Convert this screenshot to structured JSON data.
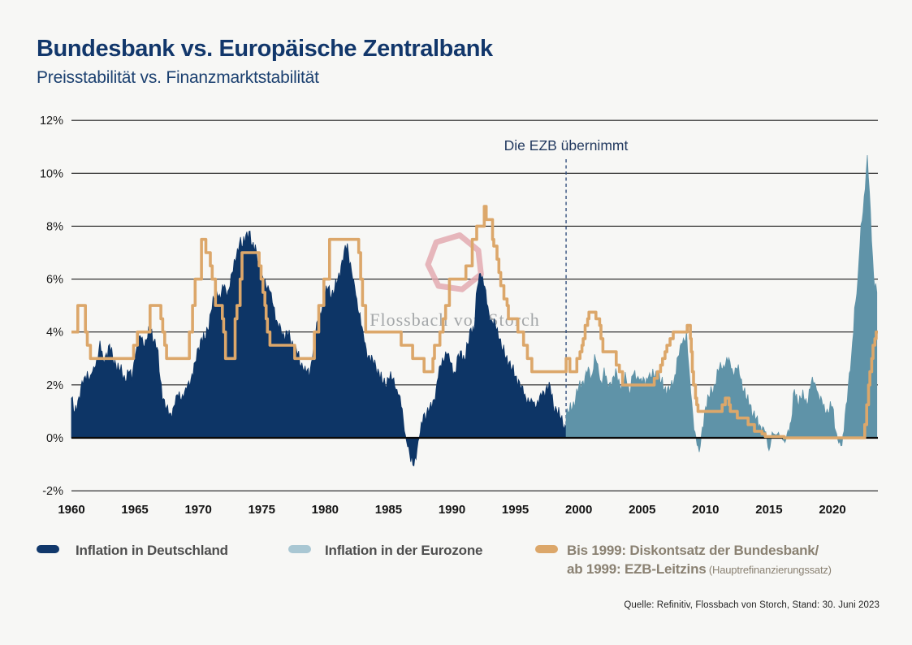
{
  "header": {
    "title": "Bundesbank vs. Europäische Zentralbank",
    "subtitle": "Preisstabilität vs. Finanzmarktstabilität"
  },
  "annotation": {
    "label": "Die EZB übernimmt",
    "x": 1999
  },
  "watermark": {
    "text": "Flossbach von Storch",
    "ring_color": "#e2a7af",
    "text_color": "#8f9396"
  },
  "source": "Quelle: Refinitiv, Flossbach von Storch, Stand: 30. Juni 2023",
  "legend": {
    "items": [
      {
        "label": "Inflation in Deutschland",
        "swatch_color": "#11386b"
      },
      {
        "label": "Inflation in der Eurozone",
        "swatch_color": "#a9c7d3"
      },
      {
        "label_line1": "Bis 1999: Diskontsatz der Bundesbank/",
        "label_line2": "ab 1999: EZB-Leitzins",
        "note": " (Hauptrefinanzierungssatz)",
        "swatch_color": "#dca76a"
      }
    ]
  },
  "chart_data": {
    "type": "area",
    "title": "Bundesbank vs. Europäische Zentralbank",
    "subtitle": "Preisstabilität vs. Finanzmarktstabilität",
    "xlim": [
      1960,
      2023.6
    ],
    "ylim": [
      -2,
      12
    ],
    "grid": "horizontal",
    "legend_position": "bottom",
    "y_ticks": [
      {
        "v": 12,
        "label": "12%"
      },
      {
        "v": 10,
        "label": "10%"
      },
      {
        "v": 8,
        "label": "8%"
      },
      {
        "v": 6,
        "label": "6%"
      },
      {
        "v": 4,
        "label": "4%"
      },
      {
        "v": 2,
        "label": "2%"
      },
      {
        "v": 0,
        "label": "0%"
      },
      {
        "v": -2,
        "label": "-2%"
      }
    ],
    "x_ticks": [
      1960,
      1965,
      1970,
      1975,
      1980,
      1985,
      1990,
      1995,
      2000,
      2005,
      2010,
      2015,
      2020
    ],
    "series": [
      {
        "name": "Inflation in Deutschland",
        "type": "area",
        "color": "#0d3566",
        "x_start": 1960,
        "x_step": 0.25,
        "values": [
          1.5,
          0.9,
          1.4,
          1.9,
          2.2,
          2.5,
          2.3,
          2.6,
          3.0,
          3.6,
          2.9,
          3.2,
          3.5,
          3.0,
          2.8,
          2.6,
          2.4,
          2.2,
          2.5,
          2.2,
          3.1,
          3.5,
          3.8,
          3.5,
          3.8,
          4.1,
          3.7,
          3.4,
          2.2,
          1.5,
          1.1,
          0.9,
          1.1,
          1.5,
          1.7,
          1.6,
          1.8,
          2.1,
          2.4,
          2.8,
          3.4,
          3.8,
          3.7,
          4.1,
          4.8,
          5.2,
          5.5,
          5.3,
          5.7,
          5.4,
          5.8,
          6.3,
          6.9,
          7.4,
          7.2,
          7.7,
          7.8,
          7.2,
          7.3,
          6.7,
          6.1,
          6.0,
          5.7,
          5.4,
          4.9,
          4.3,
          4.1,
          3.9,
          4.0,
          3.7,
          3.5,
          3.3,
          2.8,
          2.7,
          2.5,
          2.3,
          3.1,
          3.9,
          4.5,
          4.9,
          5.3,
          5.7,
          5.4,
          5.6,
          6.0,
          6.5,
          7.0,
          7.3,
          6.6,
          5.9,
          5.2,
          4.7,
          3.9,
          3.3,
          3.1,
          2.9,
          2.7,
          2.5,
          2.1,
          2.0,
          2.3,
          2.2,
          2.0,
          1.7,
          1.2,
          0.3,
          -0.3,
          -0.9,
          -1.0,
          -0.4,
          0.2,
          0.9,
          0.9,
          1.1,
          1.4,
          1.8,
          2.6,
          3.0,
          3.2,
          3.1,
          2.8,
          2.4,
          3.1,
          3.3,
          2.9,
          3.5,
          4.2,
          4.0,
          5.7,
          6.3,
          5.8,
          5.1,
          4.5,
          4.3,
          4.1,
          3.8,
          3.3,
          3.0,
          2.9,
          2.6,
          2.3,
          2.2,
          1.9,
          1.6,
          1.5,
          1.4,
          1.3,
          1.4,
          1.6,
          1.7,
          2.0,
          1.9,
          1.2,
          1.1,
          0.8,
          0.5,
          0.4
        ]
      },
      {
        "name": "Inflation in der Eurozone",
        "type": "area",
        "color": "#5f93a8",
        "x_start": 1999,
        "x_step": 0.25,
        "values": [
          0.8,
          1.0,
          1.2,
          1.5,
          1.9,
          2.1,
          2.3,
          2.6,
          2.3,
          3.1,
          2.7,
          2.1,
          2.6,
          2.0,
          2.1,
          2.3,
          2.4,
          2.0,
          2.1,
          2.2,
          1.7,
          2.4,
          2.2,
          2.3,
          2.1,
          2.0,
          2.4,
          2.3,
          2.3,
          2.5,
          2.1,
          1.8,
          1.9,
          1.9,
          2.1,
          3.0,
          3.4,
          3.7,
          4.0,
          2.2,
          0.8,
          0.0,
          -0.6,
          0.4,
          1.2,
          1.5,
          1.8,
          2.0,
          2.5,
          2.7,
          2.7,
          2.9,
          2.7,
          2.4,
          2.6,
          2.3,
          1.8,
          1.4,
          1.3,
          0.9,
          0.7,
          0.5,
          0.4,
          0.2,
          -0.5,
          0.2,
          0.1,
          0.2,
          0.0,
          -0.2,
          0.3,
          0.6,
          1.8,
          1.4,
          1.5,
          1.5,
          1.3,
          1.9,
          2.1,
          1.9,
          1.4,
          1.2,
          1.0,
          1.0,
          1.2,
          0.3,
          -0.2,
          -0.3,
          0.9,
          1.9,
          3.0,
          4.9,
          5.9,
          8.0,
          9.1,
          10.6,
          8.5,
          6.1,
          5.5
        ]
      },
      {
        "name": "Bis 1999: Diskontsatz der Bundesbank / ab 1999: EZB-Leitzins (Hauptrefinanzierungssatz)",
        "type": "step",
        "color": "#dca76a",
        "points": [
          [
            1960,
            4
          ],
          [
            1960.5,
            5
          ],
          [
            1961.1,
            4
          ],
          [
            1961.25,
            3.5
          ],
          [
            1961.5,
            3
          ],
          [
            1964.9,
            3.5
          ],
          [
            1965.2,
            4
          ],
          [
            1966.2,
            5
          ],
          [
            1967.05,
            4.5
          ],
          [
            1967.2,
            4
          ],
          [
            1967.35,
            3.5
          ],
          [
            1967.5,
            3
          ],
          [
            1969.3,
            4
          ],
          [
            1969.55,
            5
          ],
          [
            1969.75,
            6
          ],
          [
            1970.25,
            7.5
          ],
          [
            1970.6,
            7
          ],
          [
            1970.95,
            6.5
          ],
          [
            1971.1,
            6
          ],
          [
            1971.35,
            5
          ],
          [
            1971.9,
            4.5
          ],
          [
            1972.0,
            4
          ],
          [
            1972.15,
            3
          ],
          [
            1972.9,
            4.5
          ],
          [
            1973.05,
            5
          ],
          [
            1973.3,
            6
          ],
          [
            1973.45,
            7
          ],
          [
            1974.8,
            6.5
          ],
          [
            1974.95,
            6
          ],
          [
            1975.1,
            5.5
          ],
          [
            1975.25,
            5
          ],
          [
            1975.35,
            4.5
          ],
          [
            1975.45,
            4
          ],
          [
            1975.65,
            3.5
          ],
          [
            1977.6,
            3
          ],
          [
            1979.15,
            4
          ],
          [
            1979.5,
            5
          ],
          [
            1979.9,
            6
          ],
          [
            1980.35,
            7.5
          ],
          [
            1982.65,
            7
          ],
          [
            1982.8,
            6
          ],
          [
            1982.95,
            5
          ],
          [
            1983.2,
            4
          ],
          [
            1986.0,
            3.5
          ],
          [
            1986.9,
            3
          ],
          [
            1987.8,
            2.5
          ],
          [
            1988.5,
            3
          ],
          [
            1988.62,
            3.5
          ],
          [
            1989.05,
            4
          ],
          [
            1989.3,
            4.5
          ],
          [
            1989.5,
            5
          ],
          [
            1989.8,
            6
          ],
          [
            1991.1,
            6.5
          ],
          [
            1991.6,
            7.5
          ],
          [
            1991.95,
            8
          ],
          [
            1992.55,
            8.75
          ],
          [
            1992.7,
            8.25
          ],
          [
            1993.2,
            7.5
          ],
          [
            1993.3,
            7.25
          ],
          [
            1993.55,
            6.75
          ],
          [
            1993.7,
            6.25
          ],
          [
            1993.85,
            5.75
          ],
          [
            1994.1,
            5.25
          ],
          [
            1994.35,
            5
          ],
          [
            1994.45,
            4.5
          ],
          [
            1995.2,
            4
          ],
          [
            1995.65,
            3.5
          ],
          [
            1995.95,
            3
          ],
          [
            1996.3,
            2.5
          ],
          [
            1999.0,
            3
          ],
          [
            1999.3,
            2.5
          ],
          [
            1999.85,
            3
          ],
          [
            2000.1,
            3.25
          ],
          [
            2000.25,
            3.5
          ],
          [
            2000.35,
            3.75
          ],
          [
            2000.5,
            4.25
          ],
          [
            2000.7,
            4.5
          ],
          [
            2000.8,
            4.75
          ],
          [
            2001.35,
            4.5
          ],
          [
            2001.65,
            4.25
          ],
          [
            2001.75,
            3.75
          ],
          [
            2001.9,
            3.25
          ],
          [
            2002.95,
            2.75
          ],
          [
            2003.2,
            2.5
          ],
          [
            2003.45,
            2
          ],
          [
            2005.95,
            2.25
          ],
          [
            2006.2,
            2.5
          ],
          [
            2006.45,
            2.75
          ],
          [
            2006.6,
            3
          ],
          [
            2006.8,
            3.25
          ],
          [
            2006.95,
            3.5
          ],
          [
            2007.2,
            3.75
          ],
          [
            2007.45,
            4
          ],
          [
            2008.55,
            4.25
          ],
          [
            2008.8,
            3.75
          ],
          [
            2008.87,
            3.25
          ],
          [
            2008.95,
            2.5
          ],
          [
            2009.05,
            2
          ],
          [
            2009.2,
            1.5
          ],
          [
            2009.3,
            1.25
          ],
          [
            2009.4,
            1
          ],
          [
            2011.3,
            1.25
          ],
          [
            2011.55,
            1.5
          ],
          [
            2011.85,
            1.25
          ],
          [
            2011.95,
            1
          ],
          [
            2012.5,
            0.75
          ],
          [
            2013.35,
            0.5
          ],
          [
            2013.85,
            0.25
          ],
          [
            2014.45,
            0.15
          ],
          [
            2014.7,
            0.05
          ],
          [
            2016.2,
            0
          ],
          [
            2022.55,
            0.5
          ],
          [
            2022.7,
            1.25
          ],
          [
            2022.85,
            2
          ],
          [
            2022.95,
            2.5
          ],
          [
            2023.1,
            3
          ],
          [
            2023.2,
            3.5
          ],
          [
            2023.35,
            3.75
          ],
          [
            2023.45,
            4
          ]
        ]
      }
    ]
  }
}
